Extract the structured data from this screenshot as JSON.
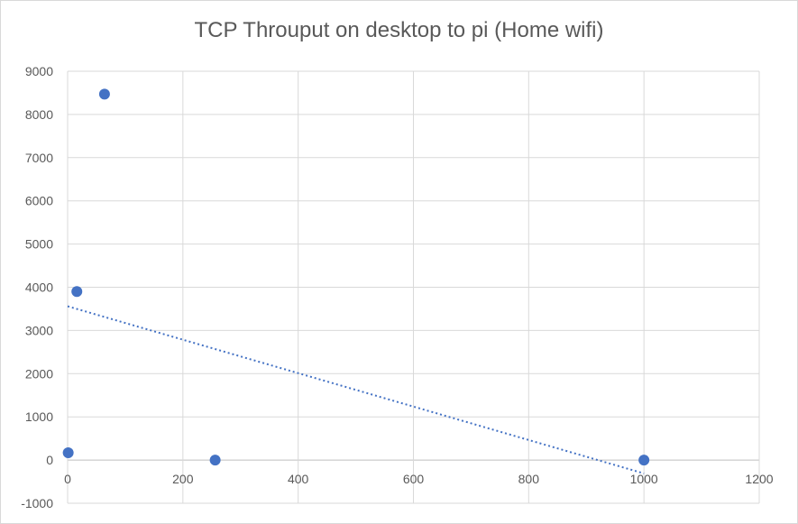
{
  "chart_data": {
    "type": "scatter",
    "title": "TCP Throuput on desktop to pi (Home wifi)",
    "xlabel": "",
    "ylabel": "",
    "xlim": [
      0,
      1200
    ],
    "ylim": [
      -1000,
      9000
    ],
    "x_ticks": [
      "0",
      "200",
      "400",
      "600",
      "800",
      "1000",
      "1200"
    ],
    "y_ticks": [
      "-1000",
      "0",
      "1000",
      "2000",
      "3000",
      "4000",
      "5000",
      "6000",
      "7000",
      "8000",
      "9000"
    ],
    "grid": true,
    "legend": "none",
    "marker_color": "#4472c4",
    "trendline": {
      "type": "linear",
      "style": "dotted",
      "from": [
        0,
        3560
      ],
      "to": [
        1000,
        -310
      ]
    },
    "points": [
      {
        "x": 1,
        "y": 170
      },
      {
        "x": 16,
        "y": 3900
      },
      {
        "x": 64,
        "y": 8470
      },
      {
        "x": 256,
        "y": 0
      },
      {
        "x": 1000,
        "y": 0
      }
    ]
  }
}
